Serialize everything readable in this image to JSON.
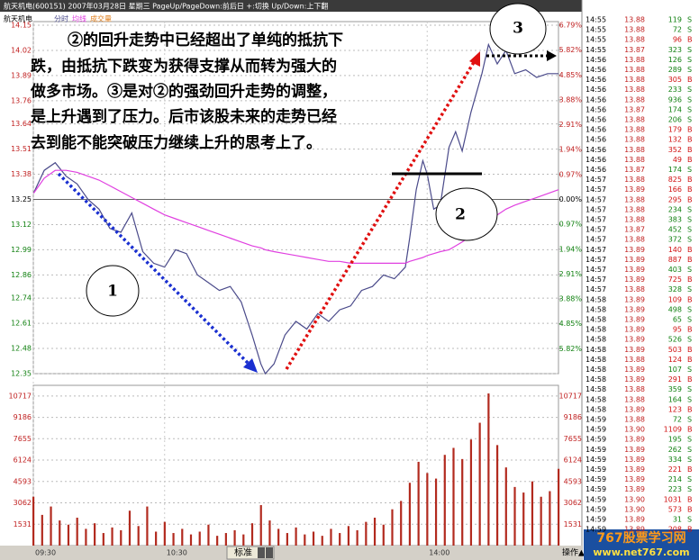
{
  "header": {
    "title": "航天机电(600151) 2007年03月28日 星期三 PageUp/PageDown:前后日 +:切换 Up/Down:上下翻",
    "stock": "航天机电"
  },
  "chart_data": [
    {
      "type": "line",
      "x": [
        0,
        5,
        10,
        15,
        20,
        25,
        30,
        35,
        40,
        45,
        50,
        55,
        60,
        65,
        70,
        75,
        80,
        85,
        90,
        95,
        100,
        104,
        106,
        110,
        115,
        120,
        125,
        130,
        135,
        140,
        145,
        150,
        155,
        160,
        165,
        170,
        172,
        175,
        178,
        180,
        183,
        186,
        190,
        193,
        196,
        200,
        205,
        208,
        212,
        216,
        220,
        225,
        230,
        235,
        240
      ],
      "series": [
        {
          "name": "分时",
          "color": "#4a4a8a",
          "values": [
            13.28,
            13.4,
            13.44,
            13.37,
            13.33,
            13.25,
            13.2,
            13.1,
            13.08,
            13.18,
            12.98,
            12.92,
            12.9,
            12.99,
            12.97,
            12.86,
            12.82,
            12.78,
            12.8,
            12.72,
            12.55,
            12.4,
            12.35,
            12.4,
            12.55,
            12.62,
            12.58,
            12.66,
            12.62,
            12.68,
            12.7,
            12.78,
            12.8,
            12.86,
            12.84,
            12.9,
            13.05,
            13.3,
            13.45,
            13.38,
            13.2,
            13.22,
            13.52,
            13.6,
            13.5,
            13.7,
            13.9,
            14.05,
            13.95,
            14.02,
            13.9,
            13.92,
            13.88,
            13.9,
            13.9
          ]
        },
        {
          "name": "均线",
          "color": "#e040e0",
          "values": [
            13.28,
            13.36,
            13.4,
            13.4,
            13.39,
            13.37,
            13.35,
            13.32,
            13.29,
            13.26,
            13.23,
            13.2,
            13.17,
            13.15,
            13.13,
            13.11,
            13.09,
            13.07,
            13.05,
            13.03,
            13.01,
            13.0,
            12.99,
            12.98,
            12.97,
            12.96,
            12.95,
            12.94,
            12.93,
            12.93,
            12.92,
            12.92,
            12.92,
            12.92,
            12.92,
            12.92,
            12.93,
            12.94,
            12.95,
            12.96,
            12.97,
            12.98,
            12.99,
            13.01,
            13.03,
            13.06,
            13.1,
            13.14,
            13.17,
            13.2,
            13.22,
            13.24,
            13.26,
            13.28,
            13.3
          ]
        }
      ],
      "xlim": [
        0,
        240
      ],
      "ylim": [
        12.35,
        14.15
      ],
      "yticks": [
        14.15,
        14.02,
        13.89,
        13.76,
        13.64,
        13.51,
        13.38,
        13.25,
        13.12,
        12.99,
        12.86,
        12.74,
        12.61,
        12.48,
        12.35
      ],
      "y2lim": [
        -6.79,
        6.79
      ],
      "y2ticks": [
        {
          "value": 6.79,
          "label": "6.79%"
        },
        {
          "value": 5.82,
          "label": "5.82%"
        },
        {
          "value": 4.85,
          "label": "4.85%"
        },
        {
          "value": 3.88,
          "label": "3.88%"
        },
        {
          "value": 2.91,
          "label": "2.91%"
        },
        {
          "value": 1.94,
          "label": "1.94%"
        },
        {
          "value": 0.97,
          "label": "0.97%"
        },
        {
          "value": 0,
          "label": "0.00%"
        },
        {
          "value": -0.97,
          "label": "0.97%"
        },
        {
          "value": -1.94,
          "label": "1.94%"
        },
        {
          "value": -2.91,
          "label": "2.91%"
        },
        {
          "value": -3.88,
          "label": "3.88%"
        },
        {
          "value": -4.85,
          "label": "4.85%"
        },
        {
          "value": -5.82,
          "label": "5.82%"
        }
      ],
      "grid": true
    },
    {
      "type": "bar",
      "series": [
        {
          "name": "成交量",
          "color": "#b22a1e",
          "values": [
            3500,
            2200,
            2800,
            1800,
            1500,
            2000,
            1200,
            1600,
            900,
            1300,
            1100,
            2500,
            1400,
            2800,
            1000,
            1700,
            900,
            1200,
            800,
            1000,
            1500,
            700,
            900,
            1100,
            800,
            1600,
            2900,
            1800,
            1200,
            900,
            1300,
            800,
            1000,
            700,
            1200,
            900,
            1400,
            1100,
            1700,
            2000,
            1500,
            2600,
            3200,
            4500,
            6000,
            5200,
            4800,
            6500,
            7000,
            6200,
            7600,
            8800,
            10900,
            7200,
            5600,
            4200,
            3800,
            4600,
            3500,
            3900,
            5500
          ]
        }
      ],
      "x": [
        0,
        4,
        8,
        12,
        16,
        20,
        24,
        28,
        32,
        36,
        40,
        44,
        48,
        52,
        56,
        60,
        64,
        68,
        72,
        76,
        80,
        84,
        88,
        92,
        96,
        100,
        104,
        108,
        112,
        116,
        120,
        124,
        128,
        132,
        136,
        140,
        144,
        148,
        152,
        156,
        160,
        164,
        168,
        172,
        176,
        180,
        184,
        188,
        192,
        196,
        200,
        204,
        208,
        212,
        216,
        220,
        224,
        228,
        232,
        236,
        240
      ],
      "xlim": [
        0,
        240
      ],
      "xticks": [
        {
          "value": 0,
          "label": "09:30"
        },
        {
          "value": 60,
          "label": "10:30"
        },
        {
          "value": 180,
          "label": "14:00"
        }
      ],
      "ylim": [
        0,
        11480
      ],
      "yticks": [
        10717,
        9186,
        7655,
        6124,
        4593,
        3062,
        1531
      ],
      "grid": true
    }
  ],
  "annotation": {
    "lines": [
      "②的回升走势中已经超出了单纯的抵抗下",
      "跌，由抵抗下跌变为获得支撑从而转为强大的",
      "做多市场。③是对②的强劲回升走势的调整，",
      "是上升遇到了压力。后市该股未来的走势已经",
      "去到能不能突破压力继续上升的思考上了。"
    ],
    "markers": [
      "1",
      "2",
      "3"
    ]
  },
  "trades": {
    "rows": [
      [
        "14:55",
        "13.88",
        "119",
        "S"
      ],
      [
        "14:55",
        "13.88",
        "72",
        "S"
      ],
      [
        "14:55",
        "13.88",
        "96",
        "B"
      ],
      [
        "14:55",
        "13.87",
        "323",
        "S"
      ],
      [
        "14:56",
        "13.88",
        "126",
        "S"
      ],
      [
        "14:56",
        "13.88",
        "289",
        "S"
      ],
      [
        "14:56",
        "13.88",
        "305",
        "B"
      ],
      [
        "14:56",
        "13.88",
        "233",
        "S"
      ],
      [
        "14:56",
        "13.88",
        "936",
        "S"
      ],
      [
        "14:56",
        "13.87",
        "174",
        "S"
      ],
      [
        "14:56",
        "13.88",
        "206",
        "S"
      ],
      [
        "14:56",
        "13.88",
        "179",
        "B"
      ],
      [
        "14:56",
        "13.88",
        "132",
        "B"
      ],
      [
        "14:56",
        "13.88",
        "352",
        "B"
      ],
      [
        "14:56",
        "13.88",
        "49",
        "B"
      ],
      [
        "14:56",
        "13.87",
        "174",
        "S"
      ],
      [
        "14:57",
        "13.88",
        "825",
        "B"
      ],
      [
        "14:57",
        "13.89",
        "166",
        "B"
      ],
      [
        "14:57",
        "13.88",
        "295",
        "B"
      ],
      [
        "14:57",
        "13.88",
        "234",
        "S"
      ],
      [
        "14:57",
        "13.88",
        "383",
        "S"
      ],
      [
        "14:57",
        "13.87",
        "452",
        "S"
      ],
      [
        "14:57",
        "13.88",
        "372",
        "S"
      ],
      [
        "14:57",
        "13.89",
        "140",
        "B"
      ],
      [
        "14:57",
        "13.89",
        "887",
        "B"
      ],
      [
        "14:57",
        "13.89",
        "403",
        "S"
      ],
      [
        "14:57",
        "13.89",
        "725",
        "B"
      ],
      [
        "14:57",
        "13.88",
        "328",
        "S"
      ],
      [
        "14:58",
        "13.89",
        "109",
        "B"
      ],
      [
        "14:58",
        "13.89",
        "498",
        "S"
      ],
      [
        "14:58",
        "13.89",
        "65",
        "S"
      ],
      [
        "14:58",
        "13.89",
        "95",
        "B"
      ],
      [
        "14:58",
        "13.89",
        "526",
        "S"
      ],
      [
        "14:58",
        "13.89",
        "503",
        "B"
      ],
      [
        "14:58",
        "13.88",
        "124",
        "B"
      ],
      [
        "14:58",
        "13.89",
        "107",
        "S"
      ],
      [
        "14:58",
        "13.89",
        "291",
        "B"
      ],
      [
        "14:58",
        "13.88",
        "359",
        "S"
      ],
      [
        "14:58",
        "13.88",
        "164",
        "S"
      ],
      [
        "14:58",
        "13.89",
        "123",
        "B"
      ],
      [
        "14:59",
        "13.88",
        "72",
        "S"
      ],
      [
        "14:59",
        "13.90",
        "1109",
        "B"
      ],
      [
        "14:59",
        "13.89",
        "195",
        "S"
      ],
      [
        "14:59",
        "13.89",
        "262",
        "S"
      ],
      [
        "14:59",
        "13.89",
        "334",
        "S"
      ],
      [
        "14:59",
        "13.89",
        "221",
        "B"
      ],
      [
        "14:59",
        "13.89",
        "214",
        "S"
      ],
      [
        "14:59",
        "13.89",
        "223",
        "S"
      ],
      [
        "14:59",
        "13.90",
        "1031",
        "B"
      ],
      [
        "14:59",
        "13.90",
        "573",
        "B"
      ],
      [
        "14:59",
        "13.89",
        "31",
        "S"
      ],
      [
        "14:59",
        "13.89",
        "208",
        "B"
      ]
    ]
  },
  "toolbar": {
    "button": "标准",
    "menu": "操作▲"
  },
  "watermark": {
    "name": "767股票学习网",
    "url": "www.net767.com"
  }
}
